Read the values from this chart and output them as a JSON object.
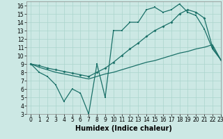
{
  "xlabel": "Humidex (Indice chaleur)",
  "bg_color": "#cce8e4",
  "grid_color": "#aad4cc",
  "line_color": "#1a7068",
  "xlim": [
    -0.5,
    23
  ],
  "ylim": [
    3,
    16.5
  ],
  "xticks": [
    0,
    1,
    2,
    3,
    4,
    5,
    6,
    7,
    8,
    9,
    10,
    11,
    12,
    13,
    14,
    15,
    16,
    17,
    18,
    19,
    20,
    21,
    22,
    23
  ],
  "yticks": [
    3,
    4,
    5,
    6,
    7,
    8,
    9,
    10,
    11,
    12,
    13,
    14,
    15,
    16
  ],
  "line1_x": [
    0,
    1,
    2,
    3,
    4,
    5,
    6,
    7,
    8,
    9,
    10,
    11,
    12,
    13,
    14,
    15,
    16,
    17,
    18,
    19,
    20,
    21,
    22,
    23
  ],
  "line1_y": [
    9.0,
    8.0,
    7.5,
    6.5,
    4.5,
    6.0,
    5.5,
    3.0,
    9.0,
    5.0,
    13.0,
    13.0,
    14.0,
    14.0,
    15.5,
    15.8,
    15.2,
    15.5,
    16.2,
    15.2,
    14.8,
    13.2,
    10.8,
    9.5
  ],
  "line2_x": [
    0,
    1,
    2,
    3,
    4,
    5,
    6,
    7,
    8,
    9,
    10,
    11,
    12,
    13,
    14,
    15,
    16,
    17,
    18,
    19,
    20,
    21,
    22,
    23
  ],
  "line2_y": [
    9.0,
    8.6,
    8.3,
    8.0,
    7.8,
    7.6,
    7.4,
    7.2,
    7.5,
    7.8,
    8.0,
    8.3,
    8.6,
    8.9,
    9.2,
    9.4,
    9.7,
    10.0,
    10.3,
    10.5,
    10.8,
    11.0,
    11.3,
    9.5
  ],
  "line3_x": [
    0,
    1,
    2,
    3,
    4,
    5,
    6,
    7,
    8,
    9,
    10,
    11,
    12,
    13,
    14,
    15,
    16,
    17,
    18,
    19,
    20,
    21,
    22,
    23
  ],
  "line3_y": [
    9.0,
    8.8,
    8.5,
    8.3,
    8.1,
    7.9,
    7.7,
    7.5,
    8.0,
    8.5,
    9.2,
    10.0,
    10.8,
    11.5,
    12.3,
    13.0,
    13.5,
    14.0,
    15.0,
    15.5,
    15.2,
    14.5,
    11.0,
    9.5
  ],
  "tick_fontsize": 5.5,
  "label_fontsize": 7
}
